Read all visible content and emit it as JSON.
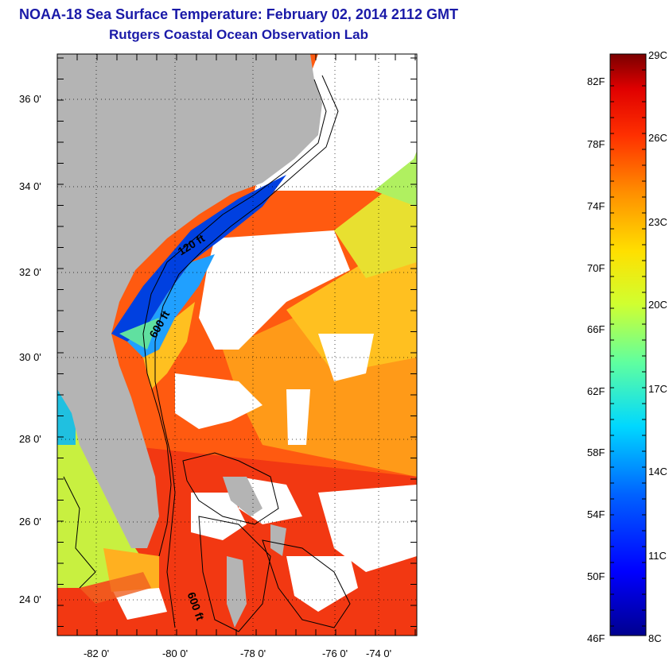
{
  "header": {
    "title": "NOAA-18 Sea Surface Temperature:  February 02, 2014 2112 GMT",
    "subtitle": "Rutgers Coastal Ocean Observation Lab"
  },
  "map": {
    "lat_labels": [
      "36 0'",
      "34 0'",
      "32 0'",
      "30 0'",
      "28 0'",
      "26 0'",
      "24 0'"
    ],
    "lon_labels": [
      "-82 0'",
      "-80 0'",
      "-78 0'",
      "-76 0'",
      "-74 0'"
    ],
    "contour_labels": [
      "120 ft",
      "600 ft",
      "600 ft"
    ],
    "colors": {
      "land": "#b4b4b4",
      "cloud": "#ffffff"
    }
  },
  "colorbar": {
    "f_labels": [
      "82F",
      "78F",
      "74F",
      "70F",
      "66F",
      "62F",
      "58F",
      "54F",
      "50F",
      "46F"
    ],
    "c_labels": [
      "29C",
      "26C",
      "23C",
      "20C",
      "17C",
      "14C",
      "11C",
      "8C"
    ]
  }
}
